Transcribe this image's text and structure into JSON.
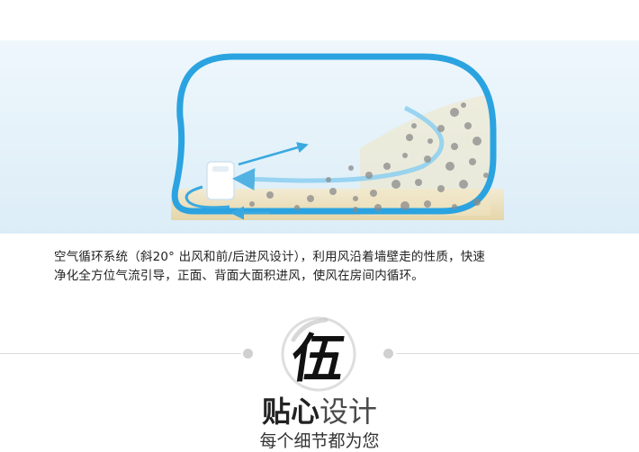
{
  "illustration": {
    "icon": "room-airflow-diagram",
    "colors": {
      "background": "#e6f3fa",
      "room_outline": "#2ba3e0",
      "arrow": "#3aa9e0",
      "floor": "#efe2b8",
      "particle": "#8a8a8a"
    }
  },
  "description": {
    "line1": "空气循环系统（斜20° 出风和前/后进风设计），利用风沿着墙壁走的性质，快速",
    "line2": "净化全方位气流引导，正面、背面大面积进风，使风在房间内循环。"
  },
  "section": {
    "number_char": "伍",
    "title_strong": "贴心",
    "title_light": "设计",
    "subtitle": "每个细节都为您"
  }
}
